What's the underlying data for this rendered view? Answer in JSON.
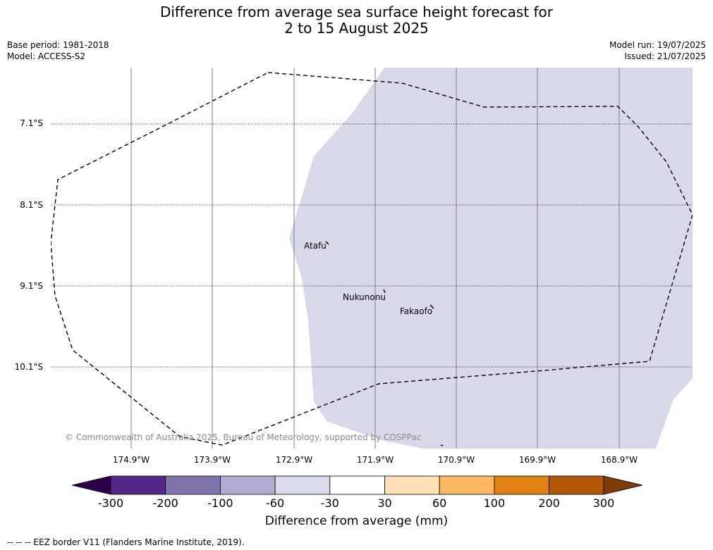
{
  "title_line1": "Difference from average sea surface height forecast for",
  "title_line2": "2 to 15 August 2025",
  "meta_left": {
    "base_period": "Base period: 1981-2018",
    "model": "Model: ACCESS-S2"
  },
  "meta_right": {
    "model_run": "Model run: 19/07/2025",
    "issued": "Issued: 21/07/2025"
  },
  "map": {
    "lat_labels": [
      "7.1°S",
      "8.1°S",
      "9.1°S",
      "10.1°S"
    ],
    "lon_labels": [
      "174.9°W",
      "173.9°W",
      "172.9°W",
      "171.9°W",
      "170.9°W",
      "169.9°W",
      "168.9°W"
    ],
    "places": [
      "Atafu",
      "Nukunonu",
      "Fakaofo"
    ],
    "copyright": "© Commonwealth of Australia 2025, Bureau of Meteorology, supported by COSPPac",
    "shaded_category": "-60 to -30",
    "colors": {
      "shade": "#d8d8ea",
      "graticule": "#808080"
    }
  },
  "colorbar": {
    "ticks": [
      "-300",
      "-200",
      "-100",
      "-60",
      "-30",
      "30",
      "60",
      "100",
      "200",
      "300"
    ],
    "colors": [
      "#2d004b",
      "#542788",
      "#8073ac",
      "#b2abd2",
      "#d8daeb",
      "#ffffff",
      "#fee0b6",
      "#fdb863",
      "#e08214",
      "#b35806",
      "#7f3b08"
    ],
    "title": "Difference from average (mm)"
  },
  "footer": "--  --  -- EEZ border V11 (Flanders Marine Institute, 2019)."
}
